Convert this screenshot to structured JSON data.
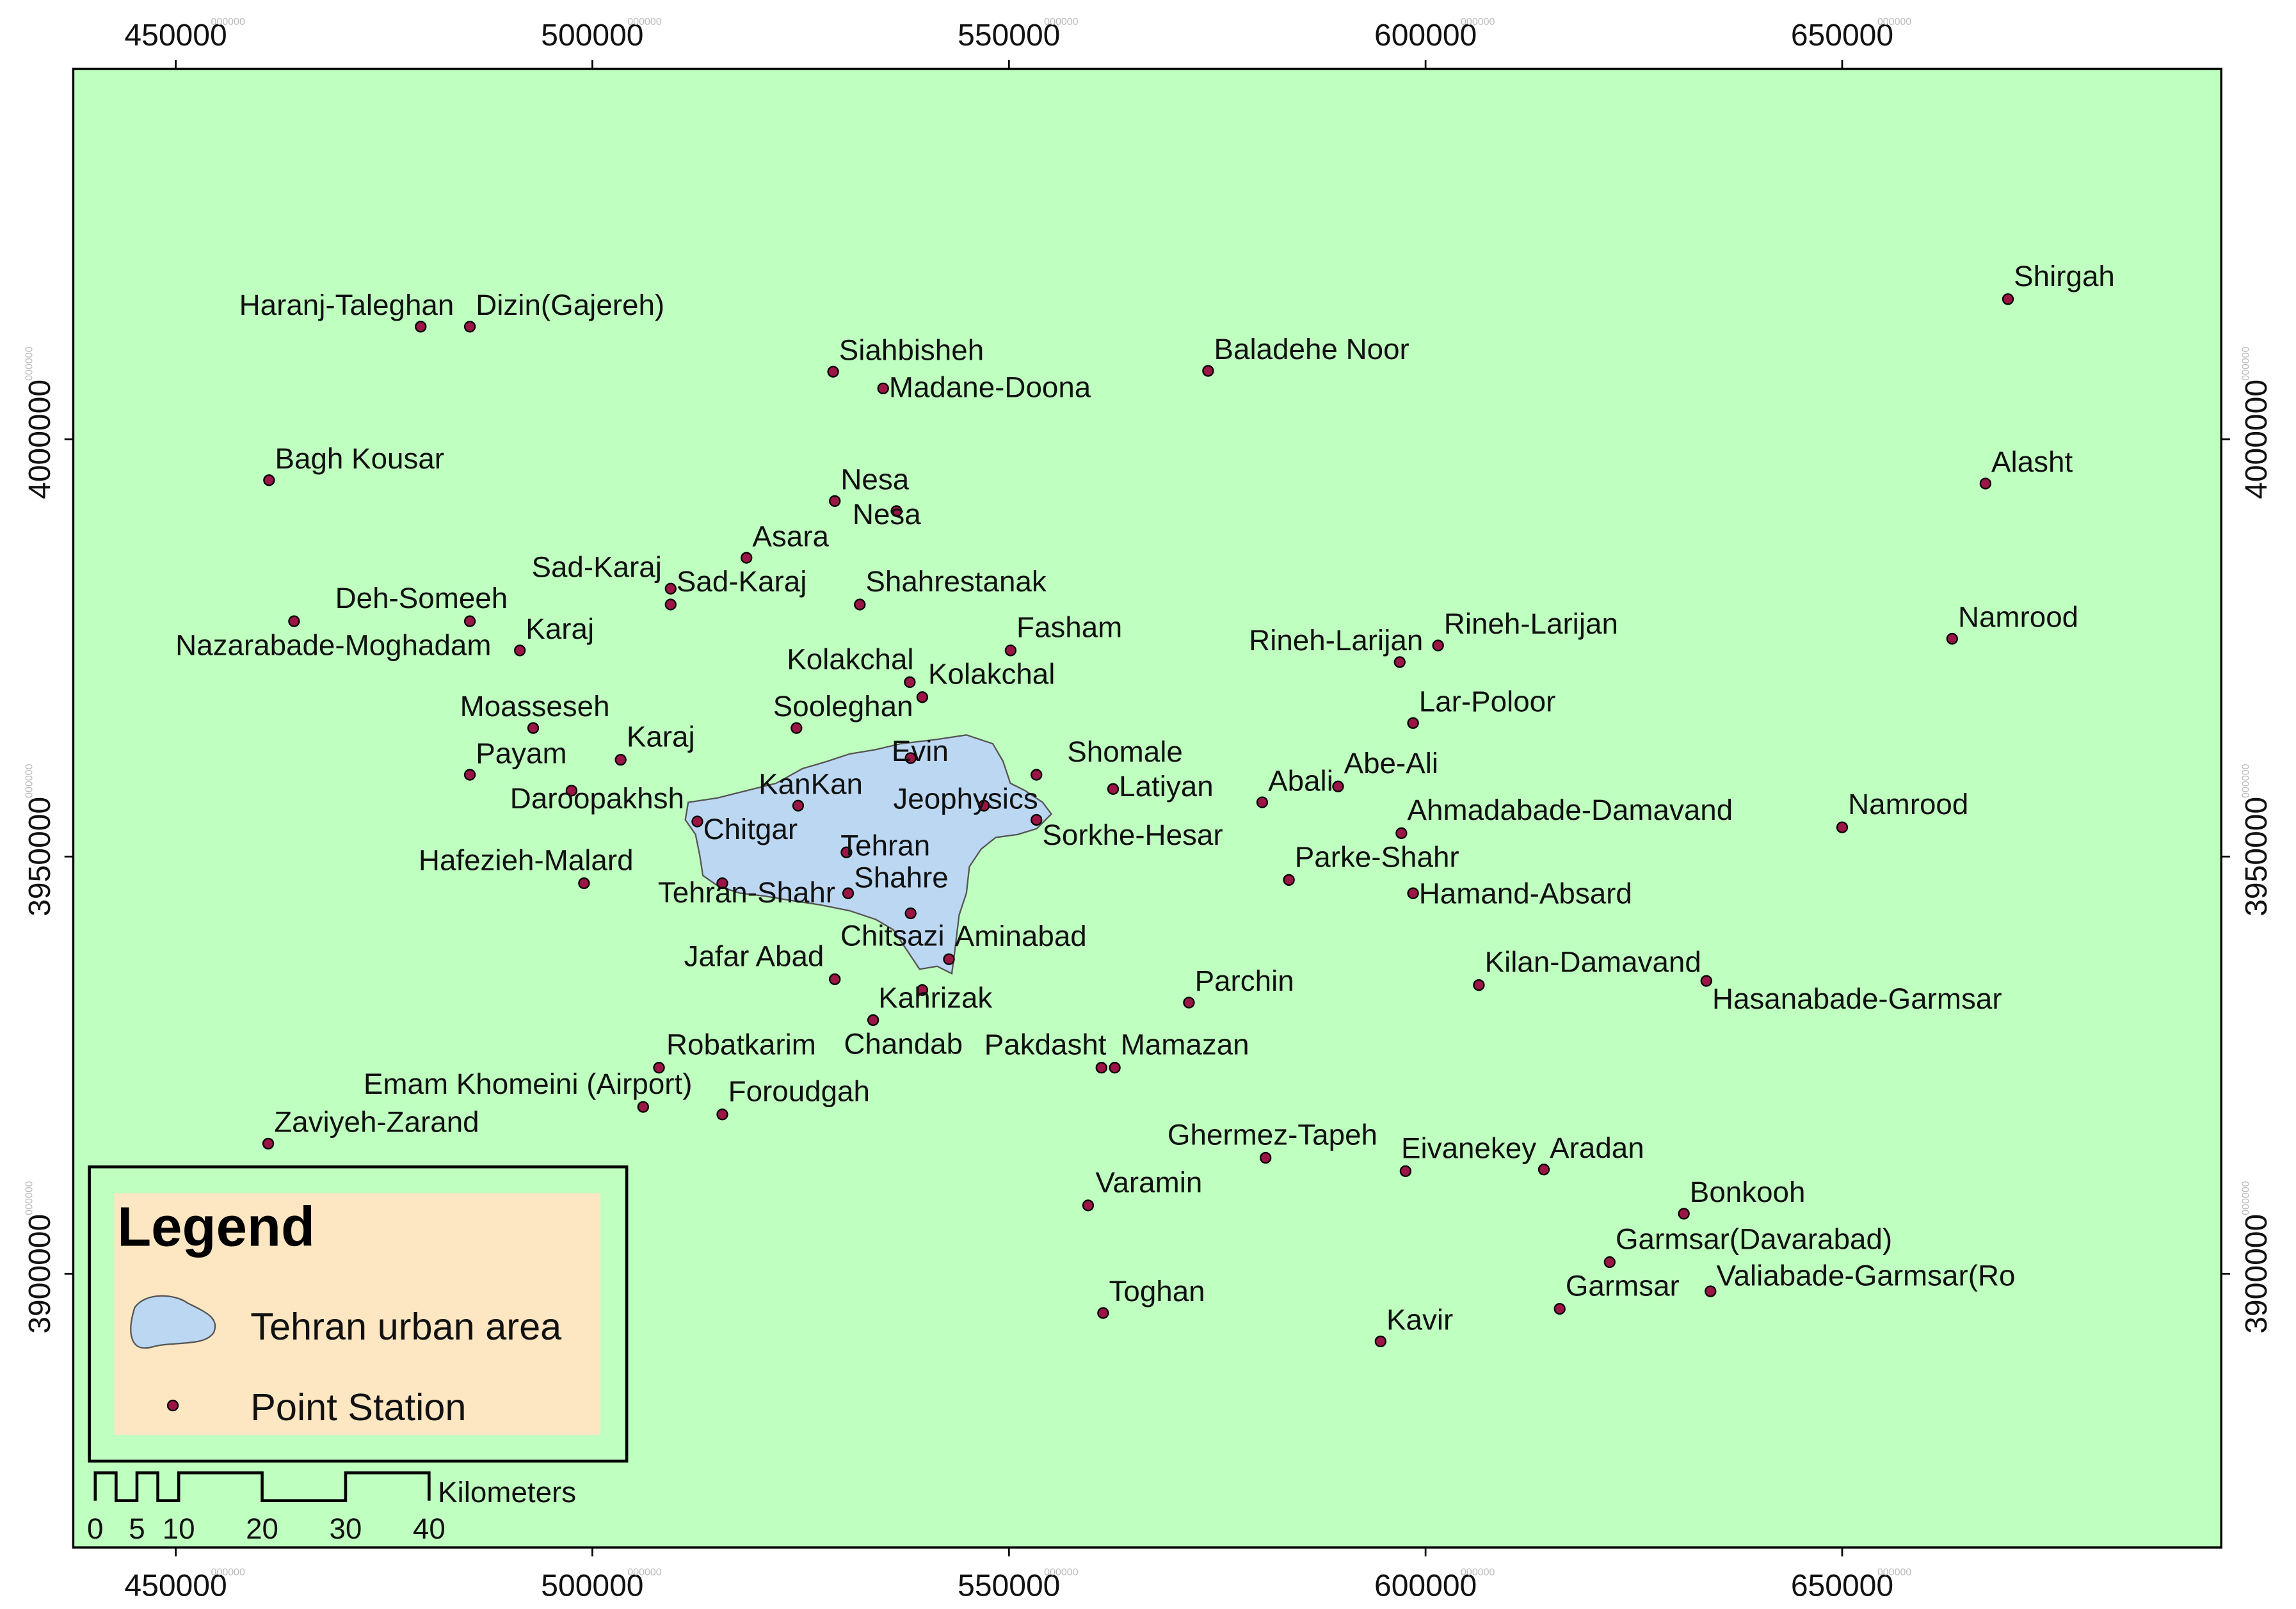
{
  "map": {
    "xlim": [
      437700,
      695500
    ],
    "ylim": [
      3867200,
      4044400
    ],
    "xticks": [
      450000,
      500000,
      550000,
      600000,
      650000
    ],
    "yticks": [
      3900000,
      3950000,
      4000000
    ],
    "tick_suffix": "000000",
    "stations": [
      {
        "name": "Haranj-Taleghan",
        "x": 479400,
        "y": 4013500
      },
      {
        "name": "Dizin(Gajereh)",
        "x": 485300,
        "y": 4013500
      },
      {
        "name": "Siahbisheh",
        "x": 528900,
        "y": 4008100
      },
      {
        "name": "Madane-Doona",
        "x": 534900,
        "y": 4006100
      },
      {
        "name": "Baladehe Noor",
        "x": 573900,
        "y": 4008200
      },
      {
        "name": "Shirgah",
        "x": 669900,
        "y": 4016800
      },
      {
        "name": "Bagh Kousar",
        "x": 461200,
        "y": 3995100
      },
      {
        "name": "Alasht",
        "x": 667200,
        "y": 3994700
      },
      {
        "name": "Nesa",
        "x": 529100,
        "y": 3992600
      },
      {
        "name": "Nesa",
        "x": 536500,
        "y": 3991400
      },
      {
        "name": "Asara",
        "x": 518500,
        "y": 3985800
      },
      {
        "name": "Sad-Karaj",
        "x": 509400,
        "y": 3982100
      },
      {
        "name": "Sad-Karaj",
        "x": 509400,
        "y": 3980200
      },
      {
        "name": "Shahrestanak",
        "x": 532100,
        "y": 3980200
      },
      {
        "name": "Deh-Someeh",
        "x": 485300,
        "y": 3978200
      },
      {
        "name": "Namrood",
        "x": 663200,
        "y": 3976100
      },
      {
        "name": "Fasham",
        "x": 550200,
        "y": 3974700
      },
      {
        "name": "Rineh-Larijan",
        "x": 596900,
        "y": 3973300
      },
      {
        "name": "Rineh-Larijan",
        "x": 601500,
        "y": 3975300
      },
      {
        "name": "Nazarabade-Moghadam",
        "x": 464200,
        "y": 3978200
      },
      {
        "name": "Karaj",
        "x": 491300,
        "y": 3974700
      },
      {
        "name": "Kolakchal",
        "x": 538100,
        "y": 3970900
      },
      {
        "name": "Kolakchal",
        "x": 539600,
        "y": 3969100
      },
      {
        "name": "Lar-Poloor",
        "x": 598500,
        "y": 3966000
      },
      {
        "name": "Moasseseh",
        "x": 492900,
        "y": 3965400
      },
      {
        "name": "Karaj",
        "x": 503400,
        "y": 3961600
      },
      {
        "name": "Sooleghan",
        "x": 524500,
        "y": 3965400
      },
      {
        "name": "Payam",
        "x": 485300,
        "y": 3959800
      },
      {
        "name": "Evin",
        "x": 538200,
        "y": 3961800
      },
      {
        "name": "Shomale",
        "x": 553300,
        "y": 3959800
      },
      {
        "name": "Abe-Ali",
        "x": 589500,
        "y": 3958400
      },
      {
        "name": "Latiyan",
        "x": 562500,
        "y": 3958100
      },
      {
        "name": "Abali",
        "x": 580400,
        "y": 3956500
      },
      {
        "name": "Daroopakhsh",
        "x": 497500,
        "y": 3957900
      },
      {
        "name": "KanKan",
        "x": 524700,
        "y": 3956100
      },
      {
        "name": "Jeophysics",
        "x": 547000,
        "y": 3956100
      },
      {
        "name": "Ahmadabade-Damavand",
        "x": 597100,
        "y": 3952800
      },
      {
        "name": "Namrood",
        "x": 650000,
        "y": 3953500
      },
      {
        "name": "Chitgar",
        "x": 512600,
        "y": 3954200
      },
      {
        "name": "Sorkhe-Hesar",
        "x": 553300,
        "y": 3954400
      },
      {
        "name": "Tehran",
        "x": 530500,
        "y": 3950500
      },
      {
        "name": "Parke-Shahr",
        "x": 583600,
        "y": 3947200
      },
      {
        "name": "Hafezieh-Malard",
        "x": 499000,
        "y": 3946800
      },
      {
        "name": "Hamand-Absard",
        "x": 598500,
        "y": 3945600
      },
      {
        "name": "Tehran-Shahr",
        "x": 515600,
        "y": 3946800
      },
      {
        "name": "Shahre",
        "x": 530700,
        "y": 3945600
      },
      {
        "name": "Chitsazi",
        "x": 538200,
        "y": 3943200
      },
      {
        "name": "Aminabad",
        "x": 542800,
        "y": 3937700
      },
      {
        "name": "Jafar Abad",
        "x": 529100,
        "y": 3935300
      },
      {
        "name": "Kilan-Damavand",
        "x": 606400,
        "y": 3934600
      },
      {
        "name": "Hasanabade-Garmsar",
        "x": 633700,
        "y": 3935100
      },
      {
        "name": "Parchin",
        "x": 571600,
        "y": 3932500
      },
      {
        "name": "Kahrizak",
        "x": 539600,
        "y": 3934000
      },
      {
        "name": "Chandab",
        "x": 533700,
        "y": 3930400
      },
      {
        "name": "Robatkarim",
        "x": 508000,
        "y": 3924700
      },
      {
        "name": "Pakdasht",
        "x": 561100,
        "y": 3924700
      },
      {
        "name": "Mamazan",
        "x": 562700,
        "y": 3924700
      },
      {
        "name": "Emam Khomeini (Airport)",
        "x": 506100,
        "y": 3920000
      },
      {
        "name": "Foroudgah",
        "x": 515600,
        "y": 3919100
      },
      {
        "name": "Zaviyeh-Zarand",
        "x": 461100,
        "y": 3915600
      },
      {
        "name": "Ghermez-Tapeh",
        "x": 580800,
        "y": 3913900
      },
      {
        "name": "Eivanekey",
        "x": 597600,
        "y": 3912300
      },
      {
        "name": "Aradan",
        "x": 614200,
        "y": 3912500
      },
      {
        "name": "Varamin",
        "x": 559500,
        "y": 3908200
      },
      {
        "name": "Bonkooh",
        "x": 631000,
        "y": 3907200
      },
      {
        "name": "Garmsar(Davarabad)",
        "x": 622100,
        "y": 3901400
      },
      {
        "name": "Garmsar",
        "x": 616100,
        "y": 3895800
      },
      {
        "name": "Valiabade-Garmsar(Ro",
        "x": 634200,
        "y": 3897900
      },
      {
        "name": "Toghan",
        "x": 561300,
        "y": 3895300
      },
      {
        "name": "Kavir",
        "x": 594600,
        "y": 3891900
      }
    ],
    "legend": {
      "title": "Legend",
      "items": [
        "Tehran urban area",
        "Point Station"
      ]
    },
    "scale_bar": {
      "ticks": [
        0,
        5,
        10,
        20,
        30,
        40
      ],
      "unit": "Kilometers"
    }
  }
}
